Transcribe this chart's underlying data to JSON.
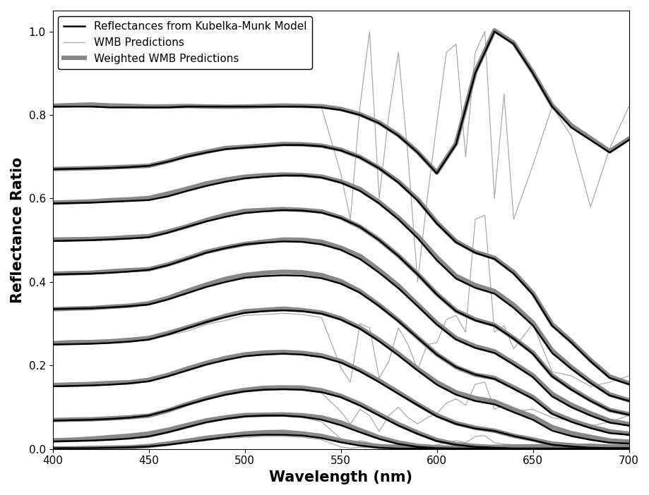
{
  "wavelengths_km": [
    400,
    410,
    420,
    430,
    440,
    450,
    460,
    470,
    480,
    490,
    500,
    510,
    520,
    530,
    540,
    550,
    560,
    570,
    580,
    590,
    600,
    610,
    620,
    630,
    640,
    650,
    660,
    670,
    680,
    690,
    700
  ],
  "km_curves": [
    [
      0.82,
      0.82,
      0.82,
      0.818,
      0.818,
      0.818,
      0.818,
      0.82,
      0.82,
      0.82,
      0.82,
      0.82,
      0.82,
      0.82,
      0.818,
      0.812,
      0.8,
      0.78,
      0.75,
      0.71,
      0.66,
      0.73,
      0.9,
      1.0,
      0.97,
      0.9,
      0.82,
      0.77,
      0.74,
      0.71,
      0.74
    ],
    [
      0.67,
      0.671,
      0.672,
      0.673,
      0.675,
      0.678,
      0.688,
      0.7,
      0.71,
      0.718,
      0.722,
      0.725,
      0.728,
      0.728,
      0.725,
      0.715,
      0.698,
      0.672,
      0.638,
      0.595,
      0.54,
      0.495,
      0.47,
      0.455,
      0.42,
      0.37,
      0.295,
      0.255,
      0.21,
      0.17,
      0.155
    ],
    [
      0.588,
      0.589,
      0.59,
      0.592,
      0.594,
      0.596,
      0.605,
      0.618,
      0.63,
      0.64,
      0.648,
      0.652,
      0.655,
      0.655,
      0.65,
      0.638,
      0.618,
      0.588,
      0.55,
      0.505,
      0.452,
      0.408,
      0.386,
      0.372,
      0.338,
      0.296,
      0.23,
      0.192,
      0.158,
      0.128,
      0.115
    ],
    [
      0.498,
      0.499,
      0.5,
      0.502,
      0.504,
      0.507,
      0.518,
      0.532,
      0.545,
      0.556,
      0.565,
      0.569,
      0.572,
      0.571,
      0.566,
      0.553,
      0.532,
      0.5,
      0.462,
      0.418,
      0.37,
      0.33,
      0.308,
      0.295,
      0.264,
      0.228,
      0.174,
      0.142,
      0.115,
      0.092,
      0.082
    ],
    [
      0.418,
      0.419,
      0.42,
      0.422,
      0.425,
      0.429,
      0.44,
      0.455,
      0.47,
      0.481,
      0.49,
      0.494,
      0.497,
      0.496,
      0.49,
      0.477,
      0.455,
      0.422,
      0.385,
      0.342,
      0.298,
      0.262,
      0.242,
      0.23,
      0.202,
      0.172,
      0.126,
      0.1,
      0.08,
      0.063,
      0.056
    ],
    [
      0.335,
      0.336,
      0.337,
      0.339,
      0.342,
      0.346,
      0.358,
      0.373,
      0.388,
      0.4,
      0.41,
      0.414,
      0.416,
      0.415,
      0.409,
      0.396,
      0.374,
      0.342,
      0.306,
      0.266,
      0.226,
      0.196,
      0.178,
      0.168,
      0.144,
      0.12,
      0.084,
      0.065,
      0.05,
      0.038,
      0.034
    ],
    [
      0.25,
      0.251,
      0.252,
      0.254,
      0.257,
      0.262,
      0.274,
      0.289,
      0.304,
      0.316,
      0.326,
      0.33,
      0.332,
      0.33,
      0.324,
      0.31,
      0.288,
      0.258,
      0.224,
      0.188,
      0.154,
      0.13,
      0.115,
      0.107,
      0.088,
      0.07,
      0.044,
      0.031,
      0.022,
      0.015,
      0.013
    ],
    [
      0.15,
      0.151,
      0.152,
      0.154,
      0.157,
      0.162,
      0.174,
      0.188,
      0.202,
      0.213,
      0.222,
      0.226,
      0.228,
      0.226,
      0.22,
      0.207,
      0.186,
      0.16,
      0.132,
      0.105,
      0.078,
      0.06,
      0.049,
      0.043,
      0.031,
      0.021,
      0.01,
      0.006,
      0.003,
      0.002,
      0.002
    ],
    [
      0.068,
      0.069,
      0.07,
      0.072,
      0.075,
      0.08,
      0.092,
      0.106,
      0.119,
      0.13,
      0.138,
      0.142,
      0.143,
      0.142,
      0.136,
      0.124,
      0.104,
      0.08,
      0.056,
      0.036,
      0.019,
      0.01,
      0.005,
      0.003,
      0.001,
      0.001,
      0.001,
      0.001,
      0.001,
      0.001,
      0.001
    ],
    [
      0.018,
      0.019,
      0.02,
      0.022,
      0.025,
      0.03,
      0.04,
      0.052,
      0.064,
      0.072,
      0.078,
      0.08,
      0.08,
      0.077,
      0.07,
      0.057,
      0.04,
      0.024,
      0.012,
      0.005,
      0.002,
      0.001,
      0.001,
      0.001,
      0.001,
      0.001,
      0.001,
      0.001,
      0.001,
      0.001,
      0.001
    ],
    [
      0.002,
      0.002,
      0.002,
      0.003,
      0.004,
      0.006,
      0.01,
      0.016,
      0.022,
      0.028,
      0.032,
      0.034,
      0.034,
      0.032,
      0.026,
      0.016,
      0.008,
      0.003,
      0.001,
      0.001,
      0.001,
      0.001,
      0.001,
      0.001,
      0.001,
      0.001,
      0.001,
      0.001,
      0.001,
      0.001,
      0.001
    ]
  ],
  "wmb_wl": [
    400,
    410,
    420,
    430,
    440,
    450,
    460,
    470,
    480,
    490,
    500,
    510,
    520,
    530,
    540,
    550,
    555,
    560,
    565,
    570,
    575,
    580,
    585,
    590,
    595,
    600,
    605,
    610,
    615,
    620,
    625,
    630,
    635,
    640,
    650,
    660,
    670,
    680,
    690,
    700
  ],
  "wmb_curves": [
    [
      0.82,
      0.82,
      0.82,
      0.82,
      0.825,
      0.82,
      0.82,
      0.82,
      0.82,
      0.82,
      0.82,
      0.82,
      0.82,
      0.82,
      0.818,
      0.66,
      0.55,
      0.82,
      1.0,
      0.6,
      0.8,
      0.95,
      0.7,
      0.4,
      0.6,
      0.78,
      0.95,
      0.97,
      0.7,
      0.95,
      1.0,
      0.6,
      0.85,
      0.55,
      0.68,
      0.82,
      0.75,
      0.58,
      0.72,
      0.82
    ],
    [
      0.25,
      0.252,
      0.253,
      0.255,
      0.257,
      0.26,
      0.272,
      0.282,
      0.298,
      0.308,
      0.32,
      0.322,
      0.325,
      0.322,
      0.315,
      0.195,
      0.16,
      0.3,
      0.29,
      0.17,
      0.21,
      0.29,
      0.25,
      0.19,
      0.25,
      0.255,
      0.31,
      0.32,
      0.28,
      0.55,
      0.56,
      0.28,
      0.295,
      0.24,
      0.3,
      0.185,
      0.175,
      0.15,
      0.16,
      0.175
    ],
    [
      0.07,
      0.072,
      0.072,
      0.074,
      0.078,
      0.082,
      0.093,
      0.106,
      0.118,
      0.128,
      0.136,
      0.14,
      0.142,
      0.14,
      0.134,
      0.09,
      0.06,
      0.095,
      0.08,
      0.042,
      0.08,
      0.1,
      0.075,
      0.06,
      0.075,
      0.085,
      0.11,
      0.12,
      0.105,
      0.155,
      0.16,
      0.095,
      0.105,
      0.09,
      0.095,
      0.075,
      0.068,
      0.055,
      0.065,
      0.08
    ],
    [
      0.02,
      0.021,
      0.021,
      0.022,
      0.024,
      0.028,
      0.038,
      0.05,
      0.062,
      0.07,
      0.076,
      0.078,
      0.078,
      0.075,
      0.065,
      0.025,
      0.01,
      0.02,
      0.015,
      0.005,
      0.008,
      0.012,
      0.008,
      0.003,
      0.005,
      0.01,
      0.015,
      0.02,
      0.015,
      0.03,
      0.032,
      0.015,
      0.012,
      0.01,
      0.01,
      0.005,
      0.004,
      0.003,
      0.004,
      0.006
    ],
    [
      0.002,
      0.002,
      0.002,
      0.003,
      0.004,
      0.006,
      0.01,
      0.015,
      0.02,
      0.025,
      0.028,
      0.03,
      0.03,
      0.028,
      0.022,
      0.005,
      0.002,
      0.004,
      0.003,
      0.001,
      0.001,
      0.002,
      0.001,
      0.001,
      0.001,
      0.001,
      0.002,
      0.002,
      0.001,
      0.003,
      0.003,
      0.002,
      0.001,
      0.001,
      0.001,
      0.001,
      0.001,
      0.001,
      0.001,
      0.001
    ]
  ],
  "km_color": "#000000",
  "wmb_color": "#aaaaaa",
  "weighted_wmb_color": "#888888",
  "km_linewidth": 1.8,
  "wmb_linewidth": 0.9,
  "weighted_wmb_linewidth": 4.5,
  "xlim": [
    400,
    700
  ],
  "ylim": [
    0.0,
    1.05
  ],
  "xlabel": "Wavelength (nm)",
  "ylabel": "Reflectance Ratio",
  "xticks": [
    400,
    450,
    500,
    550,
    600,
    650,
    700
  ],
  "yticks": [
    0.0,
    0.2,
    0.4,
    0.6,
    0.8,
    1.0
  ],
  "legend_labels": [
    "Reflectances from Kubelka-Munk Model",
    "WMB Predictions",
    "Weighted WMB Predictions"
  ],
  "legend_fontsize": 11,
  "axis_label_fontsize": 15,
  "tick_fontsize": 11
}
